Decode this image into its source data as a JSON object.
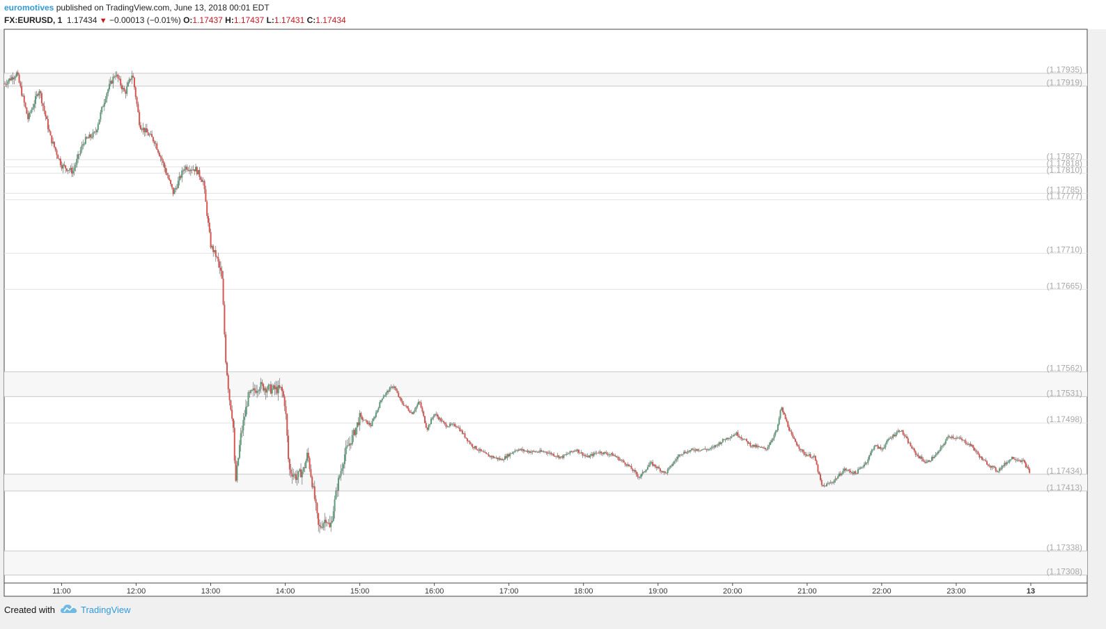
{
  "header": {
    "author": "euromotives",
    "published_text": " published on TradingView.com, June 13, 2018 00:01 EDT",
    "symbol": "FX:EURUSD, 1",
    "last": "1.17434",
    "change": "−0.00013 (−0.01%)",
    "o_label": "O:",
    "o_value": "1.17437",
    "h_label": "H:",
    "h_value": "1.17437",
    "l_label": "L:",
    "l_value": "1.17431",
    "c_label": "C:",
    "c_value": "1.17434"
  },
  "footer": {
    "created_with": "Created with",
    "brand": "TradingView"
  },
  "colors": {
    "up": "#5b9a78",
    "down": "#d9534f",
    "level_line": "#c8c8c8",
    "level_label": "#a8a8a8",
    "accent": "#2f9ad8"
  },
  "chart_data": {
    "type": "candlestick",
    "symbol": "FX:EURUSD",
    "interval": "1",
    "ylim": [
      1.17298,
      1.1799
    ],
    "x_ticks": [
      "11:00",
      "12:00",
      "13:00",
      "14:00",
      "15:00",
      "16:00",
      "17:00",
      "18:00",
      "19:00",
      "20:00",
      "21:00",
      "22:00",
      "23:00",
      "13"
    ],
    "x_tick_hours": [
      11,
      12,
      13,
      14,
      15,
      16,
      17,
      18,
      19,
      20,
      21,
      22,
      23,
      24
    ],
    "x_start_hour": 10.23,
    "x_end_hour": 24,
    "levels": [
      {
        "label": "(1.17935)",
        "value": 1.17935,
        "band": true
      },
      {
        "label": "(1.17919)",
        "value": 1.17919,
        "band": true
      },
      {
        "label": "(1.17827)",
        "value": 1.17827,
        "band": false
      },
      {
        "label": "(1.17818)",
        "value": 1.17818,
        "band": false
      },
      {
        "label": "(1.17810)",
        "value": 1.1781,
        "band": false
      },
      {
        "label": "(1.17785)",
        "value": 1.17785,
        "band": false
      },
      {
        "label": "(1.17777)",
        "value": 1.17777,
        "band": false
      },
      {
        "label": "(1.17710)",
        "value": 1.1771,
        "band": false
      },
      {
        "label": "(1.17665)",
        "value": 1.17665,
        "band": false
      },
      {
        "label": "(1.17562)",
        "value": 1.17562,
        "band": true
      },
      {
        "label": "(1.17531)",
        "value": 1.17531,
        "band": true
      },
      {
        "label": "(1.17498)",
        "value": 1.17498,
        "band": false
      },
      {
        "label": "(1.17434)",
        "value": 1.17434,
        "band": true
      },
      {
        "label": "(1.17413)",
        "value": 1.17413,
        "band": true
      },
      {
        "label": "(1.17338)",
        "value": 1.17338,
        "band": true
      },
      {
        "label": "(1.17308)",
        "value": 1.17308,
        "band": true
      }
    ],
    "price_path": [
      [
        10.23,
        1.17922
      ],
      [
        10.4,
        1.17935
      ],
      [
        10.55,
        1.17878
      ],
      [
        10.7,
        1.17915
      ],
      [
        10.85,
        1.17855
      ],
      [
        11.0,
        1.1782
      ],
      [
        11.15,
        1.17812
      ],
      [
        11.3,
        1.1785
      ],
      [
        11.45,
        1.1786
      ],
      [
        11.6,
        1.1791
      ],
      [
        11.72,
        1.17935
      ],
      [
        11.85,
        1.1791
      ],
      [
        11.95,
        1.17935
      ],
      [
        12.05,
        1.1787
      ],
      [
        12.15,
        1.1786
      ],
      [
        12.25,
        1.1785
      ],
      [
        12.35,
        1.17825
      ],
      [
        12.5,
        1.17785
      ],
      [
        12.65,
        1.17818
      ],
      [
        12.8,
        1.17815
      ],
      [
        12.9,
        1.178
      ],
      [
        13.0,
        1.1772
      ],
      [
        13.08,
        1.17705
      ],
      [
        13.15,
        1.1768
      ],
      [
        13.2,
        1.1758
      ],
      [
        13.25,
        1.1753
      ],
      [
        13.3,
        1.175
      ],
      [
        13.33,
        1.1742
      ],
      [
        13.4,
        1.1748
      ],
      [
        13.5,
        1.1753
      ],
      [
        13.65,
        1.17545
      ],
      [
        13.8,
        1.1754
      ],
      [
        13.95,
        1.1754
      ],
      [
        14.0,
        1.1752
      ],
      [
        14.05,
        1.1744
      ],
      [
        14.15,
        1.1743
      ],
      [
        14.25,
        1.1744
      ],
      [
        14.3,
        1.1746
      ],
      [
        14.4,
        1.174
      ],
      [
        14.45,
        1.17365
      ],
      [
        14.55,
        1.1738
      ],
      [
        14.6,
        1.17365
      ],
      [
        14.7,
        1.1742
      ],
      [
        14.8,
        1.1746
      ],
      [
        14.9,
        1.1748
      ],
      [
        15.0,
        1.17505
      ],
      [
        15.15,
        1.17495
      ],
      [
        15.3,
        1.1753
      ],
      [
        15.45,
        1.17545
      ],
      [
        15.55,
        1.17525
      ],
      [
        15.7,
        1.1751
      ],
      [
        15.8,
        1.17525
      ],
      [
        15.9,
        1.1749
      ],
      [
        16.0,
        1.1751
      ],
      [
        16.15,
        1.17495
      ],
      [
        16.3,
        1.17495
      ],
      [
        16.5,
        1.1747
      ],
      [
        16.7,
        1.17458
      ],
      [
        16.9,
        1.17452
      ],
      [
        17.1,
        1.17465
      ],
      [
        17.3,
        1.17462
      ],
      [
        17.5,
        1.17462
      ],
      [
        17.7,
        1.17455
      ],
      [
        17.9,
        1.17465
      ],
      [
        18.05,
        1.17455
      ],
      [
        18.2,
        1.17462
      ],
      [
        18.4,
        1.17458
      ],
      [
        18.6,
        1.17445
      ],
      [
        18.75,
        1.1743
      ],
      [
        18.9,
        1.17448
      ],
      [
        19.1,
        1.17435
      ],
      [
        19.3,
        1.1746
      ],
      [
        19.5,
        1.17465
      ],
      [
        19.7,
        1.17465
      ],
      [
        19.9,
        1.17478
      ],
      [
        20.05,
        1.17485
      ],
      [
        20.25,
        1.1747
      ],
      [
        20.45,
        1.17465
      ],
      [
        20.6,
        1.1749
      ],
      [
        20.65,
        1.17518
      ],
      [
        20.8,
        1.1748
      ],
      [
        20.95,
        1.1746
      ],
      [
        21.1,
        1.17455
      ],
      [
        21.2,
        1.17418
      ],
      [
        21.35,
        1.17425
      ],
      [
        21.5,
        1.1744
      ],
      [
        21.65,
        1.17435
      ],
      [
        21.8,
        1.1745
      ],
      [
        21.9,
        1.1747
      ],
      [
        22.0,
        1.17465
      ],
      [
        22.1,
        1.17478
      ],
      [
        22.25,
        1.1749
      ],
      [
        22.45,
        1.1746
      ],
      [
        22.6,
        1.17448
      ],
      [
        22.75,
        1.1746
      ],
      [
        22.9,
        1.17482
      ],
      [
        23.05,
        1.17478
      ],
      [
        23.2,
        1.1747
      ],
      [
        23.35,
        1.17452
      ],
      [
        23.55,
        1.17438
      ],
      [
        23.75,
        1.17455
      ],
      [
        23.9,
        1.1745
      ],
      [
        24.0,
        1.17434
      ]
    ]
  }
}
